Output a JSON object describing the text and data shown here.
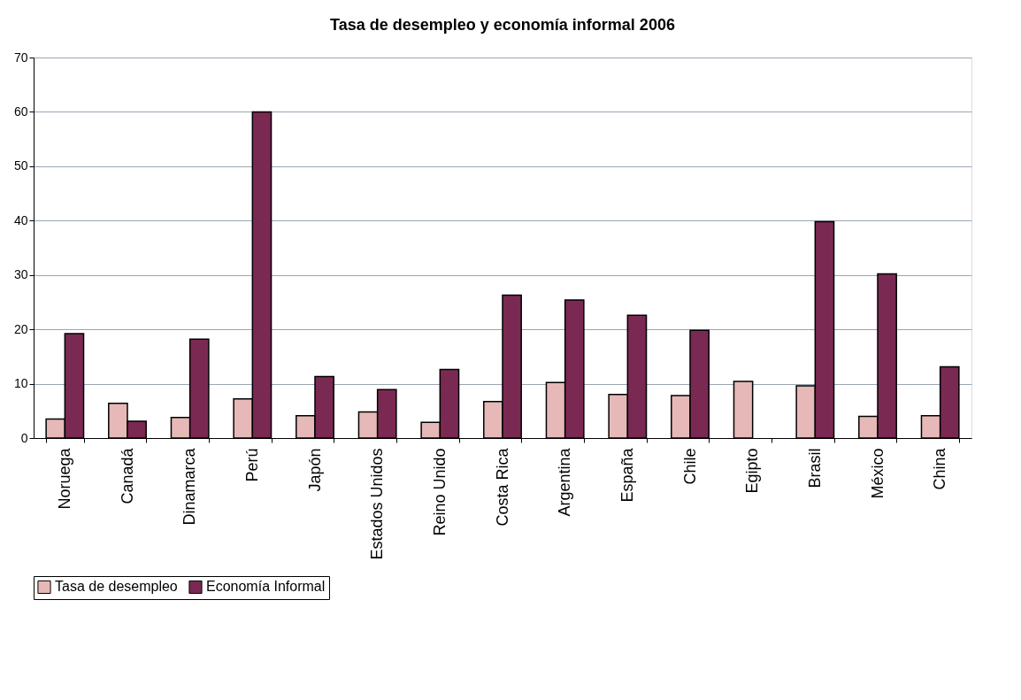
{
  "chart_data": {
    "type": "bar",
    "title": "Tasa de desempleo y economía informal 2006",
    "categories": [
      "Noruega",
      "Canadá",
      "Dinamarca",
      "Perú",
      "Japón",
      "Estados Unidos",
      "Reino Unido",
      "Costa Rica",
      "Argentina",
      "España",
      "Chile",
      "Egipto",
      "Brasil",
      "México",
      "China"
    ],
    "series": [
      {
        "name": "Tasa de desempleo",
        "color": "#e6b8b7",
        "values": [
          3.5,
          6.4,
          3.8,
          7.2,
          4.1,
          4.8,
          2.9,
          6.7,
          10.2,
          8.0,
          7.8,
          10.4,
          9.6,
          4.0,
          4.1
        ]
      },
      {
        "name": "Economía Informal",
        "color": "#7a2a52",
        "values": [
          19.2,
          3.1,
          18.2,
          60,
          11.3,
          8.9,
          12.6,
          26.3,
          25.4,
          22.6,
          19.8,
          null,
          39.8,
          30.2,
          13.1
        ]
      }
    ],
    "ylim": [
      0,
      70
    ],
    "yticks": [
      0,
      10,
      20,
      30,
      40,
      50,
      60,
      70
    ],
    "grid": "y",
    "legend": "bottom"
  }
}
